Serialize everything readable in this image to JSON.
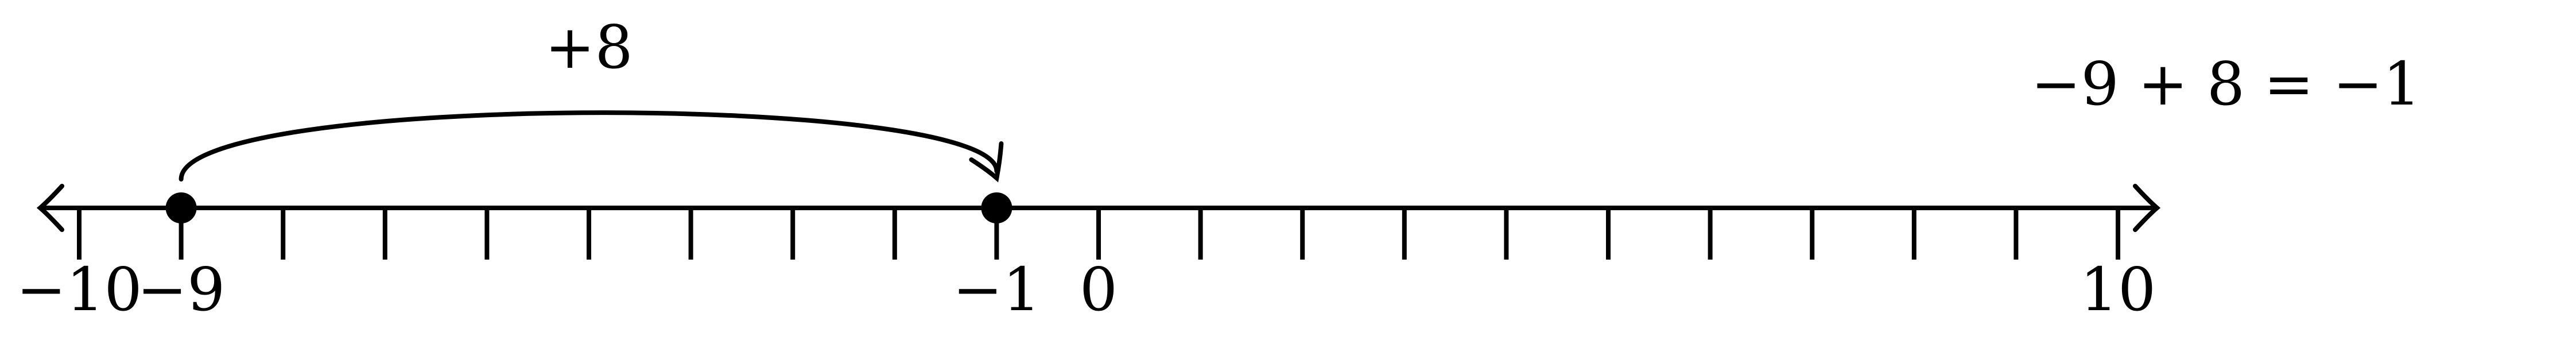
{
  "number_line": {
    "min": -10,
    "max": 10,
    "tick_step": 1,
    "labels": [
      {
        "value": -10,
        "text": "−10"
      },
      {
        "value": -9,
        "text": "−9"
      },
      {
        "value": -1,
        "text": "−1"
      },
      {
        "value": 0,
        "text": "0"
      },
      {
        "value": 10,
        "text": "10"
      }
    ],
    "points": [
      {
        "value": -9,
        "name": "start-point"
      },
      {
        "value": -1,
        "name": "end-point"
      }
    ]
  },
  "jump": {
    "from": -9,
    "to": -1,
    "label": "+8"
  },
  "equation": "−9 + 8 = −1",
  "colors": {
    "ink": "#000000",
    "background": "#ffffff"
  }
}
